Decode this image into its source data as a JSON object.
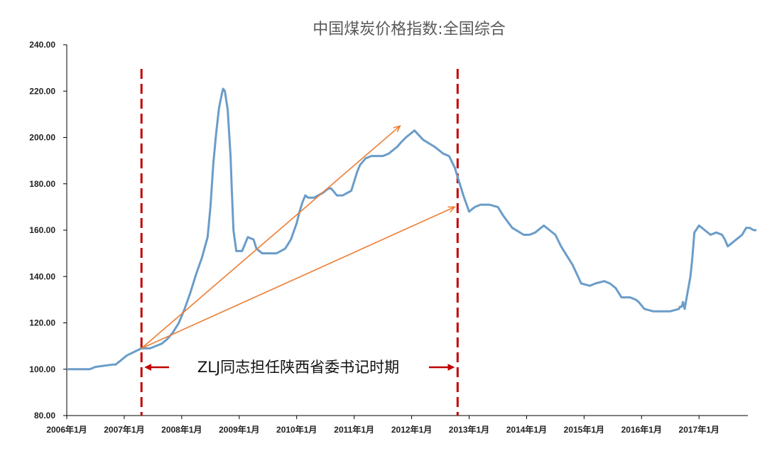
{
  "chart_data": {
    "type": "line",
    "title": "中国煤炭价格指数:全国综合",
    "xlabel": "",
    "ylabel": "",
    "ylim": [
      80,
      240
    ],
    "grid": false,
    "legend": "none",
    "y_ticks": [
      "80.00",
      "100.00",
      "120.00",
      "140.00",
      "160.00",
      "180.00",
      "200.00",
      "220.00",
      "240.00"
    ],
    "x_ticks": [
      "2006年1月",
      "2007年1月",
      "2008年1月",
      "2009年1月",
      "2010年1月",
      "2011年1月",
      "2012年1月",
      "2013年1月",
      "2014年1月",
      "2015年1月",
      "2016年1月",
      "2017年1月"
    ],
    "series": [
      {
        "color": "#6a9cc9",
        "x": [
          2006.0,
          2006.4,
          2006.5,
          2006.8,
          2006.85,
          2006.95,
          2007.0,
          2007.05,
          2007.3,
          2007.35,
          2007.45,
          2007.55,
          2007.65,
          2007.75,
          2007.85,
          2007.95,
          2008.05,
          2008.15,
          2008.25,
          2008.35,
          2008.45,
          2008.5,
          2008.55,
          2008.6,
          2008.65,
          2008.7,
          2008.72,
          2008.75,
          2008.8,
          2008.85,
          2008.87,
          2008.9,
          2008.95,
          2009.05,
          2009.1,
          2009.15,
          2009.25,
          2009.3,
          2009.4,
          2009.5,
          2009.65,
          2009.8,
          2009.9,
          2010.0,
          2010.05,
          2010.1,
          2010.15,
          2010.2,
          2010.3,
          2010.45,
          2010.55,
          2010.6,
          2010.7,
          2010.8,
          2010.95,
          2011.05,
          2011.1,
          2011.2,
          2011.3,
          2011.5,
          2011.6,
          2011.75,
          2011.82,
          2011.9,
          2012.05,
          2012.2,
          2012.4,
          2012.55,
          2012.65,
          2012.75,
          2012.8,
          2012.9,
          2013.0,
          2013.05,
          2013.1,
          2013.2,
          2013.35,
          2013.5,
          2013.6,
          2013.75,
          2013.95,
          2014.05,
          2014.15,
          2014.3,
          2014.5,
          2014.6,
          2014.7,
          2014.8,
          2014.95,
          2015.1,
          2015.2,
          2015.35,
          2015.45,
          2015.55,
          2015.65,
          2015.8,
          2015.9,
          2015.95,
          2016.05,
          2016.2,
          2016.35,
          2016.5,
          2016.65,
          2016.67,
          2016.7,
          2016.72,
          2016.75,
          2016.8,
          2016.85,
          2016.88,
          2016.92,
          2017.0,
          2017.1,
          2017.2,
          2017.3,
          2017.4,
          2017.45,
          2017.5,
          2017.55,
          2017.65,
          2017.75,
          2017.82,
          2017.88,
          2017.95,
          2018.0
        ],
        "y": [
          100,
          100,
          101,
          102,
          102,
          104,
          105,
          106,
          109,
          109,
          109,
          110,
          111,
          113,
          116,
          120,
          126,
          133,
          141,
          148,
          157,
          170,
          189,
          202,
          213,
          219,
          221,
          220,
          212,
          192,
          178,
          160,
          151,
          151,
          154,
          157,
          156,
          152,
          150,
          150,
          150,
          152,
          156,
          163,
          168,
          172,
          175,
          174,
          174,
          176,
          178,
          178,
          175,
          175,
          177,
          185,
          188,
          191,
          192,
          192,
          193,
          196,
          198,
          200,
          203,
          199,
          196,
          193,
          192,
          187,
          183,
          175,
          168,
          169,
          170,
          171,
          171,
          170,
          166,
          161,
          158,
          158,
          159,
          162,
          158,
          153,
          149,
          145,
          137,
          136,
          137,
          138,
          137,
          135,
          131,
          131,
          130,
          129,
          126,
          125,
          125,
          125,
          126,
          127,
          127,
          129,
          126,
          133,
          140,
          147,
          159,
          162,
          160,
          158,
          159,
          158,
          156,
          153,
          154,
          156,
          158,
          161,
          161,
          160,
          160
        ]
      }
    ],
    "markers": {
      "vlines_x": [
        2007.3,
        2012.8
      ],
      "start_point": [
        2007.3,
        109
      ],
      "arrow_targets": [
        [
          2011.8,
          205
        ],
        [
          2012.75,
          170
        ]
      ],
      "vline_color": "#c00000",
      "arrow_color": "#ed7d31"
    },
    "annotation": "ZLJ同志担任陕西省委书记时期"
  }
}
